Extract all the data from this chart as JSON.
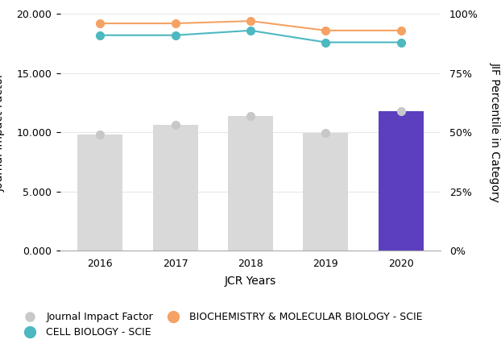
{
  "years": [
    2016,
    2017,
    2018,
    2019,
    2020
  ],
  "jif_values": [
    9.8,
    10.6,
    11.4,
    9.95,
    11.75
  ],
  "bar_colors": [
    "#d9d9d9",
    "#d9d9d9",
    "#d9d9d9",
    "#d9d9d9",
    "#5b3fbe"
  ],
  "cell_biology_pct": [
    91,
    91,
    93,
    88,
    88
  ],
  "biochem_molbio_pct": [
    96,
    96,
    97,
    93,
    93
  ],
  "cell_biology_color": "#4db8c0",
  "biochem_color": "#f5a264",
  "jif_marker_color": "#c8c8c8",
  "xlabel": "JCR Years",
  "ylabel_left": "Journal Impact Factor",
  "ylabel_right": "JIF Percentile in Category",
  "ylim_left": [
    0,
    20
  ],
  "ylim_right": [
    0,
    100
  ],
  "yticks_left": [
    0.0,
    5.0,
    10.0,
    15.0,
    20.0
  ],
  "ytick_labels_left": [
    "0.000",
    "5.000",
    "10.000",
    "15.000",
    "20.000"
  ],
  "yticks_right": [
    0,
    25,
    50,
    75,
    100
  ],
  "ytick_labels_right": [
    "0%",
    "25%",
    "50%",
    "75%",
    "100%"
  ],
  "legend_jif_label": "Journal Impact Factor",
  "legend_cell_label": "CELL BIOLOGY - SCIE",
  "legend_biochem_label": "BIOCHEMISTRY & MOLECULAR BIOLOGY - SCIE",
  "bg_color": "#ffffff",
  "grid_color": "#e8e8e8"
}
